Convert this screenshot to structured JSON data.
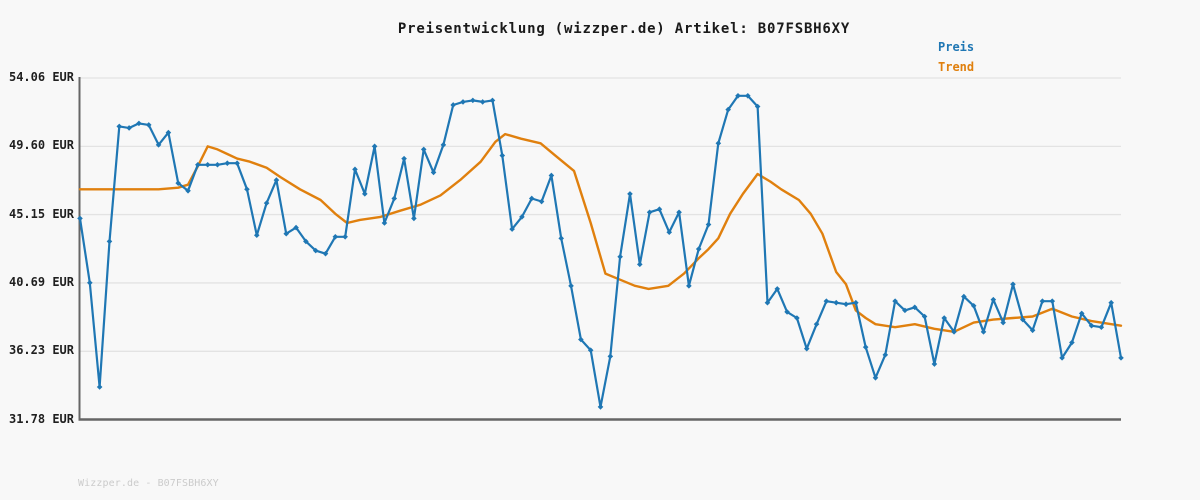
{
  "page": {
    "title": "Preisentwicklung (wizzper.de) Artikel: B07FSBH6XY",
    "footer": "Wizzper.de - B07FSBH6XY",
    "background": "#f8f8f8"
  },
  "legend": {
    "position": "top-right",
    "items": [
      {
        "label": "Preis",
        "color": "#1f77b4"
      },
      {
        "label": "Trend",
        "color": "#e0800e"
      }
    ]
  },
  "colors": {
    "grid": "#e3e3e3",
    "axis_spine": "#666666",
    "tick_text": "#1f1f1f",
    "footer_text": "#cbcbcb"
  },
  "chart_data": {
    "type": "line",
    "title": "Preisentwicklung (wizzper.de) Artikel: B07FSBH6XY",
    "grid": true,
    "legend_position": "top-right",
    "x_axis": {
      "label": "",
      "tick_labels": [],
      "note": "time axis without visible tick labels; 107 samples indexed 0-106"
    },
    "y_axis": {
      "unit": "EUR",
      "tick_labels": [
        "54.06 EUR",
        "49.60 EUR",
        "45.15 EUR",
        "40.69 EUR",
        "36.23 EUR",
        "31.78 EUR"
      ],
      "tick_values": [
        54.06,
        49.6,
        45.15,
        40.69,
        36.23,
        31.78
      ],
      "range": [
        31.78,
        54.06
      ]
    },
    "series": [
      {
        "name": "Preis",
        "color": "#1f77b4",
        "marker": "diamond",
        "values": [
          44.9,
          40.7,
          33.9,
          43.4,
          50.9,
          50.8,
          51.1,
          51.0,
          49.7,
          50.5,
          47.2,
          46.7,
          48.4,
          48.4,
          48.4,
          48.5,
          48.5,
          46.8,
          43.8,
          45.9,
          47.4,
          43.9,
          44.3,
          43.4,
          42.8,
          42.6,
          43.7,
          43.7,
          48.1,
          46.5,
          49.6,
          44.6,
          46.2,
          48.8,
          44.9,
          49.4,
          47.9,
          49.7,
          52.3,
          52.5,
          52.6,
          52.5,
          52.6,
          49.0,
          44.2,
          45.0,
          46.2,
          46.0,
          47.7,
          43.6,
          40.5,
          37.0,
          36.3,
          32.6,
          35.9,
          42.4,
          46.5,
          41.9,
          45.3,
          45.5,
          44.0,
          45.3,
          40.5,
          42.9,
          44.5,
          49.8,
          52.0,
          52.9,
          52.9,
          52.2,
          39.4,
          40.3,
          38.8,
          38.4,
          36.4,
          38.0,
          39.5,
          39.4,
          39.3,
          39.4,
          36.5,
          34.5,
          36.0,
          39.5,
          38.9,
          39.1,
          38.5,
          35.4,
          38.4,
          37.5,
          39.8,
          39.2,
          37.5,
          39.6,
          38.1,
          40.6,
          38.3,
          37.6,
          39.5,
          39.5,
          35.8,
          36.8,
          38.7,
          37.9,
          37.8,
          39.4,
          35.8
        ]
      },
      {
        "name": "Trend",
        "color": "#e0800e",
        "marker": "none",
        "points": [
          [
            0,
            46.8
          ],
          [
            2,
            46.8
          ],
          [
            4,
            46.8
          ],
          [
            6,
            46.8
          ],
          [
            8,
            46.8
          ],
          [
            10,
            46.9
          ],
          [
            11,
            47.1
          ],
          [
            12,
            48.3
          ],
          [
            13,
            49.6
          ],
          [
            14,
            49.4
          ],
          [
            15,
            49.1
          ],
          [
            16,
            48.8
          ],
          [
            17.3,
            48.6
          ],
          [
            19,
            48.2
          ],
          [
            20.4,
            47.6
          ],
          [
            22.4,
            46.8
          ],
          [
            24.5,
            46.1
          ],
          [
            26,
            45.2
          ],
          [
            27.2,
            44.6
          ],
          [
            28.5,
            44.8
          ],
          [
            30.6,
            45.0
          ],
          [
            32.6,
            45.4
          ],
          [
            34.7,
            45.8
          ],
          [
            36.7,
            46.4
          ],
          [
            38.7,
            47.4
          ],
          [
            40.8,
            48.6
          ],
          [
            42.3,
            49.9
          ],
          [
            43.3,
            50.4
          ],
          [
            44.9,
            50.1
          ],
          [
            46.9,
            49.8
          ],
          [
            48.4,
            49.0
          ],
          [
            50.3,
            48.0
          ],
          [
            52,
            44.6
          ],
          [
            53.5,
            41.3
          ],
          [
            55,
            40.9
          ],
          [
            56.5,
            40.5
          ],
          [
            57.9,
            40.3
          ],
          [
            59.9,
            40.5
          ],
          [
            61.5,
            41.3
          ],
          [
            63,
            42.3
          ],
          [
            64,
            42.9
          ],
          [
            65,
            43.6
          ],
          [
            66.2,
            45.2
          ],
          [
            67.5,
            46.5
          ],
          [
            69,
            47.8
          ],
          [
            70.3,
            47.3
          ],
          [
            71.4,
            46.8
          ],
          [
            73.2,
            46.1
          ],
          [
            74.4,
            45.2
          ],
          [
            75.6,
            43.9
          ],
          [
            77,
            41.4
          ],
          [
            78,
            40.6
          ],
          [
            79,
            38.9
          ],
          [
            80,
            38.4
          ],
          [
            81,
            38.0
          ],
          [
            83,
            37.8
          ],
          [
            85,
            38.0
          ],
          [
            87,
            37.7
          ],
          [
            89,
            37.5
          ],
          [
            91,
            38.1
          ],
          [
            93,
            38.3
          ],
          [
            95,
            38.4
          ],
          [
            97,
            38.5
          ],
          [
            99,
            39.0
          ],
          [
            101,
            38.5
          ],
          [
            103,
            38.2
          ],
          [
            106,
            37.9
          ]
        ]
      }
    ]
  }
}
